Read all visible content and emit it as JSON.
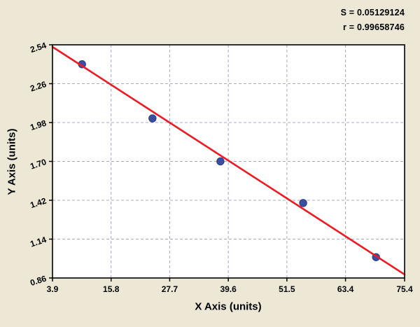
{
  "stats": {
    "s_label": "S = 0.05129124",
    "r_label": "r = 0.99658746"
  },
  "chart_data": {
    "type": "scatter",
    "title": "",
    "xlabel": "X Axis (units)",
    "ylabel": "Y Axis (units)",
    "xlim": [
      3.9,
      75.4
    ],
    "ylim": [
      0.86,
      2.54
    ],
    "x_tick_labels": [
      "3.9",
      "15.8",
      "27.7",
      "39.6",
      "51.5",
      "63.4",
      "75.4"
    ],
    "y_tick_labels": [
      "0.86",
      "1.14",
      "1.42",
      "1.70",
      "1.98",
      "2.26",
      "2.54"
    ],
    "grid": "dashed",
    "legend": "none",
    "points": [
      [
        9.9,
        2.4
      ],
      [
        24.2,
        2.01
      ],
      [
        38.0,
        1.7
      ],
      [
        54.8,
        1.4
      ],
      [
        69.6,
        1.01
      ]
    ],
    "fit_line": {
      "x1": 3.9,
      "y1": 2.525,
      "x2": 75.4,
      "y2": 0.885
    },
    "colors": {
      "page_bg": "#ece8d5",
      "plot_bg": "#ffffff",
      "frame": "#000000",
      "grid": "#aaa8c6",
      "point_fill": "#3b4fa0",
      "point_edge": "#283a7e",
      "fit_line": "#ed1c24",
      "text": "#000000"
    }
  }
}
